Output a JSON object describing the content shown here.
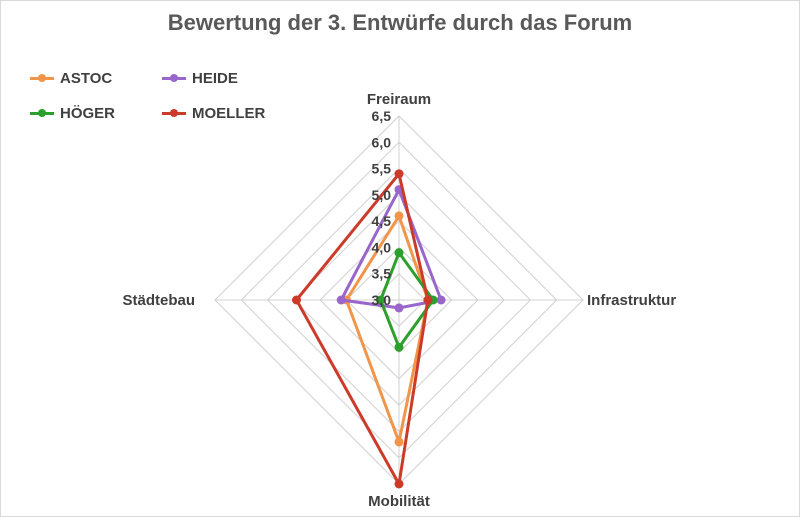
{
  "chart_data": {
    "type": "radar",
    "title": "Bewertung der 3. Entwürfe durch das Forum",
    "axes": [
      "Freiraum",
      "Infrastruktur",
      "Mobilität",
      "Städtebau"
    ],
    "range": [
      3.0,
      6.5
    ],
    "ticks": [
      "3,0",
      "3,5",
      "4,0",
      "4,5",
      "5,0",
      "5,5",
      "6,0",
      "6,5"
    ],
    "grid": true,
    "legend_position": "top-left",
    "series": [
      {
        "name": "ASTOC",
        "color": "#f0954a",
        "values": [
          4.6,
          3.55,
          5.7,
          4.0
        ]
      },
      {
        "name": "HEIDE",
        "color": "#9966cc",
        "values": [
          5.1,
          3.8,
          3.15,
          4.1
        ]
      },
      {
        "name": "HÖGER",
        "color": "#2ca02c",
        "values": [
          3.9,
          3.65,
          3.9,
          3.35
        ]
      },
      {
        "name": "MOELLER",
        "color": "#cc3b2a",
        "values": [
          5.4,
          3.55,
          6.5,
          4.95
        ]
      }
    ]
  }
}
